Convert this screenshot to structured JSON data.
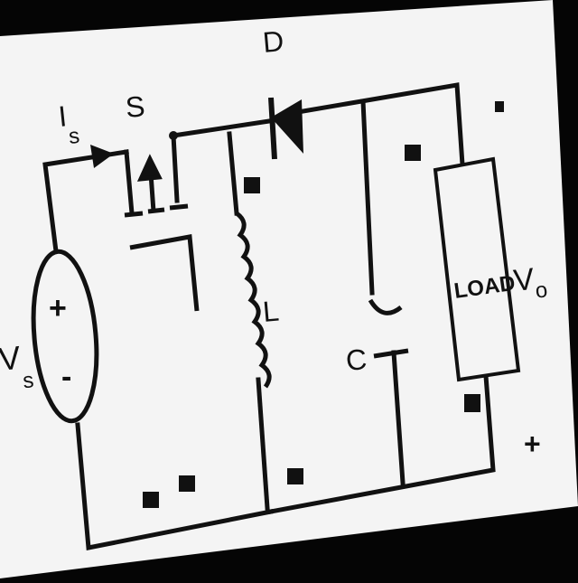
{
  "labels": {
    "switch": "S",
    "diode": "D",
    "inductor": "L",
    "capacitor": "C",
    "load": "LOAD",
    "source_current_main": "I",
    "source_current_sub": "s",
    "source_voltage_main": "V",
    "source_voltage_sub": "s",
    "output_voltage_main": "V",
    "output_voltage_sub": "o",
    "source_plus": "+",
    "source_minus": "-",
    "output_plus": "+"
  },
  "colors": {
    "paper": "#f4f4f4",
    "ink": "#111111",
    "background": "#050505"
  }
}
